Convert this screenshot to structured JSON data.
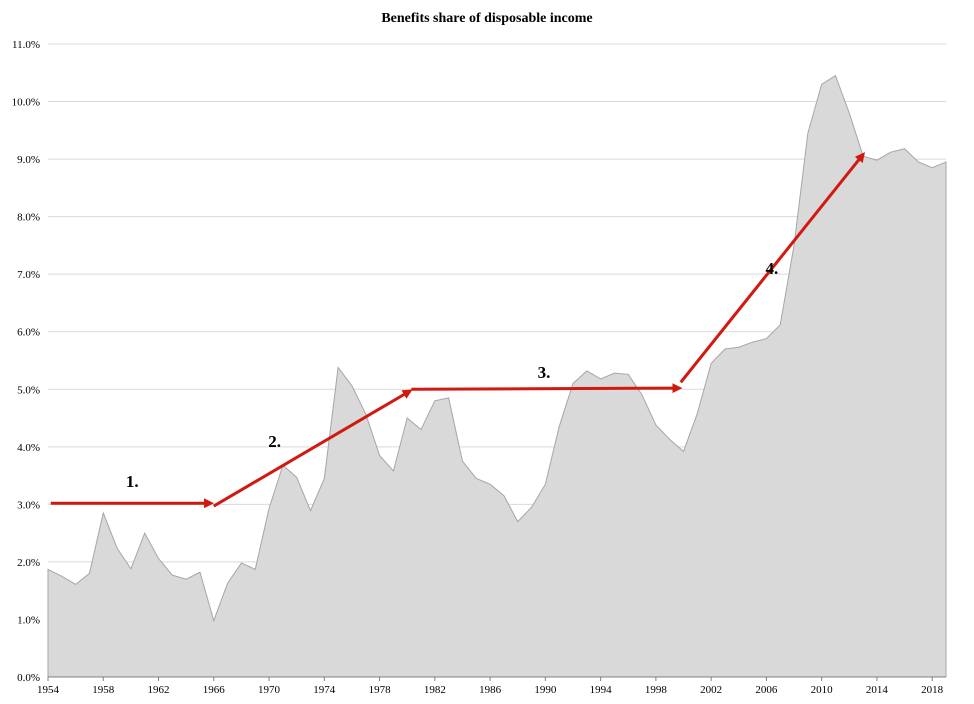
{
  "chart_data": {
    "type": "area",
    "title": "Benefits share of disposable income",
    "xlabel": "",
    "ylabel": "",
    "xlim": [
      1954,
      2019
    ],
    "ylim": [
      0.0,
      11.0
    ],
    "y_tick_labels": [
      "0.0%",
      "1.0%",
      "2.0%",
      "3.0%",
      "4.0%",
      "5.0%",
      "6.0%",
      "7.0%",
      "8.0%",
      "9.0%",
      "10.0%",
      "11.0%"
    ],
    "y_tick_values": [
      0,
      1,
      2,
      3,
      4,
      5,
      6,
      7,
      8,
      9,
      10,
      11
    ],
    "x_tick_labels": [
      "1954",
      "1958",
      "1962",
      "1966",
      "1970",
      "1974",
      "1978",
      "1982",
      "1986",
      "1990",
      "1994",
      "1998",
      "2002",
      "2006",
      "2010",
      "2014",
      "2018"
    ],
    "x_tick_values": [
      1954,
      1958,
      1962,
      1966,
      1970,
      1974,
      1978,
      1982,
      1986,
      1990,
      1994,
      1998,
      2002,
      2006,
      2010,
      2014,
      2018
    ],
    "grid": true,
    "fill_color": "#d9d9d9",
    "line_color": "#a6a6a6",
    "series": [
      {
        "x": [
          1954,
          1955,
          1956,
          1957,
          1958,
          1959,
          1960,
          1961,
          1962,
          1963,
          1964,
          1965,
          1966,
          1967,
          1968,
          1969,
          1970,
          1971,
          1972,
          1973,
          1974,
          1975,
          1976,
          1977,
          1978,
          1979,
          1980,
          1981,
          1982,
          1983,
          1984,
          1985,
          1986,
          1987,
          1988,
          1989,
          1990,
          1991,
          1992,
          1993,
          1994,
          1995,
          1996,
          1997,
          1998,
          1999,
          2000,
          2001,
          2002,
          2003,
          2004,
          2005,
          2006,
          2007,
          2008,
          2009,
          2010,
          2011,
          2012,
          2013,
          2014,
          2015,
          2016,
          2017,
          2018,
          2019
        ],
        "values": [
          1.87,
          1.75,
          1.61,
          1.8,
          2.85,
          2.24,
          1.88,
          2.5,
          2.06,
          1.77,
          1.7,
          1.82,
          0.98,
          1.63,
          1.98,
          1.87,
          2.93,
          3.68,
          3.47,
          2.89,
          3.45,
          5.38,
          5.06,
          4.57,
          3.85,
          3.58,
          4.5,
          4.3,
          4.8,
          4.85,
          3.75,
          3.45,
          3.35,
          3.15,
          2.7,
          2.95,
          3.35,
          4.35,
          5.1,
          5.32,
          5.18,
          5.28,
          5.26,
          4.9,
          4.38,
          4.13,
          3.92,
          4.58,
          5.45,
          5.7,
          5.73,
          5.82,
          5.88,
          6.12,
          7.5,
          9.45,
          10.3,
          10.45,
          9.8,
          9.05,
          8.98,
          9.12,
          9.18,
          8.95,
          8.85,
          8.95
        ]
      }
    ],
    "annotations": [
      {
        "label": "1.",
        "from": [
          1954.2,
          3.02
        ],
        "to": [
          1965.8,
          3.02
        ]
      },
      {
        "label": "2.",
        "from": [
          1966.0,
          2.97
        ],
        "to": [
          1980.2,
          4.97
        ]
      },
      {
        "label": "3.",
        "from": [
          1980.3,
          5.0
        ],
        "to": [
          1999.7,
          5.02
        ]
      },
      {
        "label": "4.",
        "from": [
          1999.8,
          5.12
        ],
        "to": [
          2013.0,
          9.08
        ]
      }
    ],
    "annotation_label_positions": [
      {
        "label": "1.",
        "x": 1960.1,
        "y": 3.3
      },
      {
        "label": "2.",
        "x": 1970.4,
        "y": 4.0
      },
      {
        "label": "3.",
        "x": 1989.9,
        "y": 5.2
      },
      {
        "label": "4.",
        "x": 2006.4,
        "y": 7.0
      }
    ],
    "arrow_color": "#d0190f"
  }
}
